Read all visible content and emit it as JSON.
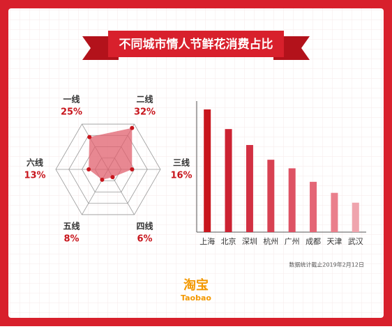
{
  "title": "不同城市情人节鲜花消费占比",
  "note": "数据统计截止2019年2月12日",
  "logo": {
    "name": "淘宝",
    "latin": "Taobao"
  },
  "chart_data": [
    {
      "type": "radar",
      "categories": [
        "一线",
        "二线",
        "三线",
        "四线",
        "五线",
        "六线"
      ],
      "values": [
        25,
        32,
        16,
        6,
        8,
        13
      ],
      "value_labels": [
        "25%",
        "32%",
        "16%",
        "6%",
        "8%",
        "13%"
      ],
      "rlim": [
        0,
        35
      ],
      "color": "#e0606e",
      "point_color": "#c8161d"
    },
    {
      "type": "bar",
      "categories": [
        "上海",
        "北京",
        "深圳",
        "杭州",
        "广州",
        "成都",
        "天津",
        "武汉"
      ],
      "values": [
        100,
        84,
        71,
        59,
        52,
        41,
        32,
        24
      ],
      "ylim": [
        0,
        100
      ],
      "colors": [
        "#c8161d",
        "#cc2232",
        "#d23042",
        "#d84152",
        "#de5264",
        "#e46676",
        "#ea7f8c",
        "#efa4ad"
      ]
    }
  ]
}
